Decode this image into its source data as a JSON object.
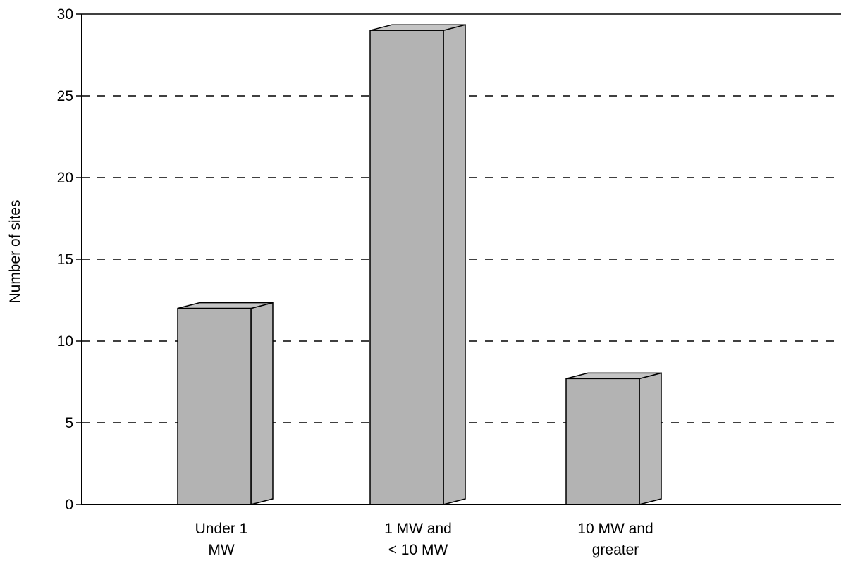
{
  "chart_data": {
    "type": "bar",
    "title": "",
    "xlabel": "",
    "ylabel": "Number of sites",
    "categories": [
      [
        "Under 1",
        "MW"
      ],
      [
        "1 MW and",
        "< 10 MW"
      ],
      [
        "10 MW and",
        "greater"
      ]
    ],
    "values": [
      12,
      29,
      7.7
    ],
    "ylim": [
      0,
      30
    ],
    "yticks": [
      0,
      5,
      10,
      15,
      20,
      25,
      30
    ],
    "grid": true,
    "grid_style": "dashed",
    "bar_style": "3d",
    "colors": {
      "bar_front": "#b3b3b3",
      "bar_side": "#b8b8b8",
      "bar_top": "#c4c4c4",
      "outline": "#000000",
      "gridline": "#000000"
    }
  }
}
